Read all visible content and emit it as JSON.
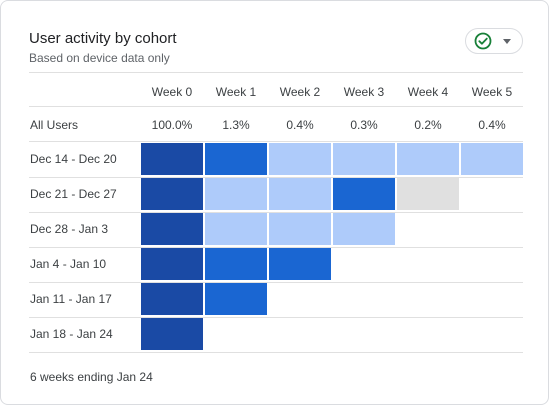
{
  "card": {
    "title": "User activity by cohort",
    "subtitle": "Based on device data only",
    "footer": "6 weeks ending Jan 24",
    "status_icon": "check-circle-icon"
  },
  "columns": [
    "Week 0",
    "Week 1",
    "Week 2",
    "Week 3",
    "Week 4",
    "Week 5"
  ],
  "all_users": {
    "label": "All Users",
    "values": [
      "100.0%",
      "1.3%",
      "0.4%",
      "0.3%",
      "0.2%",
      "0.4%"
    ]
  },
  "colors": {
    "dark": "#1a4aa5",
    "mid": "#1a66d2",
    "light": "#aecbfa",
    "gray": "#e0e0e0",
    "accent_green": "#188038"
  },
  "rows": [
    {
      "label": "Dec 14 - Dec 20",
      "cells": [
        "dark",
        "mid",
        "light",
        "light",
        "light",
        "light"
      ]
    },
    {
      "label": "Dec 21 - Dec 27",
      "cells": [
        "dark",
        "light",
        "light",
        "mid",
        "gray"
      ]
    },
    {
      "label": "Dec 28 - Jan 3",
      "cells": [
        "dark",
        "light",
        "light",
        "light"
      ]
    },
    {
      "label": "Jan 4 - Jan 10",
      "cells": [
        "dark",
        "mid",
        "mid"
      ]
    },
    {
      "label": "Jan 11 - Jan 17",
      "cells": [
        "dark",
        "mid"
      ]
    },
    {
      "label": "Jan 18 - Jan 24",
      "cells": [
        "dark"
      ]
    }
  ]
}
